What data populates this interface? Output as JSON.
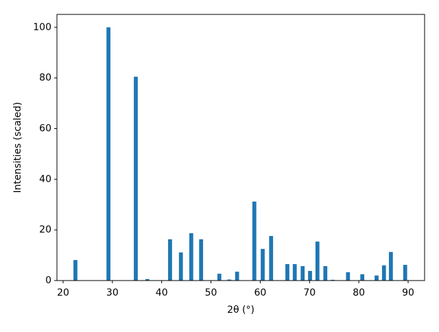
{
  "chart_data": {
    "type": "bar",
    "xlabel": "2θ (°)",
    "ylabel": "Intensities (scaled)",
    "x": [
      22.5,
      29.2,
      34.75,
      37.1,
      41.7,
      43.9,
      46.0,
      48.0,
      51.7,
      53.7,
      55.3,
      58.8,
      60.5,
      62.2,
      65.5,
      67.0,
      68.6,
      70.1,
      71.6,
      73.2,
      74.7,
      77.8,
      80.7,
      83.6,
      85.1,
      86.5,
      89.4
    ],
    "values": [
      8.1,
      100,
      80.5,
      0.6,
      16.3,
      11.1,
      18.7,
      16.3,
      2.7,
      0.4,
      3.5,
      31.2,
      12.5,
      17.6,
      6.5,
      6.5,
      5.7,
      3.8,
      15.4,
      5.7,
      0.3,
      3.3,
      2.5,
      2.0,
      6.0,
      11.3,
      6.2
    ],
    "color": "#1f77b4",
    "xlim": [
      18.75,
      93.34
    ],
    "xticks": [
      20,
      30,
      40,
      50,
      60,
      70,
      80,
      90
    ],
    "ylim": [
      0,
      105.1
    ],
    "yticks": [
      0,
      20,
      40,
      60,
      80,
      100
    ]
  }
}
